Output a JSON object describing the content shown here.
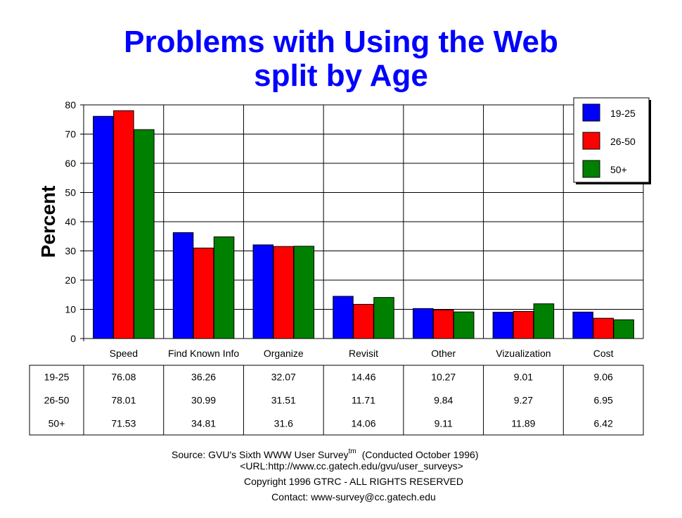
{
  "chart_data": {
    "type": "bar",
    "title": "Problems with Using the Web",
    "subtitle": "split by Age",
    "ylabel": "Percent",
    "ylim": [
      0,
      80
    ],
    "yticks": [
      0,
      10,
      20,
      30,
      40,
      50,
      60,
      70,
      80
    ],
    "grid": true,
    "legend_position": "top-right",
    "categories": [
      "Speed",
      "Find Known Info",
      "Organize",
      "Revisit",
      "Other",
      "Vizualization",
      "Cost"
    ],
    "series": [
      {
        "name": "19-25",
        "color": "#0000ff",
        "values": [
          76.08,
          36.26,
          32.07,
          14.46,
          10.27,
          9.01,
          9.06
        ],
        "labels": [
          "76.08",
          "36.26",
          "32.07",
          "14.46",
          "10.27",
          "9.01",
          "9.06"
        ]
      },
      {
        "name": "26-50",
        "color": "#ff0000",
        "values": [
          78.01,
          30.99,
          31.51,
          11.71,
          9.84,
          9.27,
          6.95
        ],
        "labels": [
          "78.01",
          "30.99",
          "31.51",
          "11.71",
          "9.84",
          "9.27",
          "6.95"
        ]
      },
      {
        "name": "50+",
        "color": "#008000",
        "values": [
          71.53,
          34.81,
          31.6,
          14.06,
          9.11,
          11.89,
          6.42
        ],
        "labels": [
          "71.53",
          "34.81",
          "31.6",
          "14.06",
          "9.11",
          "11.89",
          "6.42"
        ]
      }
    ]
  },
  "source": {
    "line1_prefix": "Source: GVU's Sixth WWW User Survey",
    "line1_sup": "tm",
    "line1_suffix": "(Conducted October 1996)",
    "line2": "<URL:http://www.cc.gatech.edu/gvu/user_surveys>",
    "line3": "Copyright 1996 GTRC -  ALL RIGHTS RESERVED",
    "line4": "Contact: www-survey@cc.gatech.edu"
  }
}
